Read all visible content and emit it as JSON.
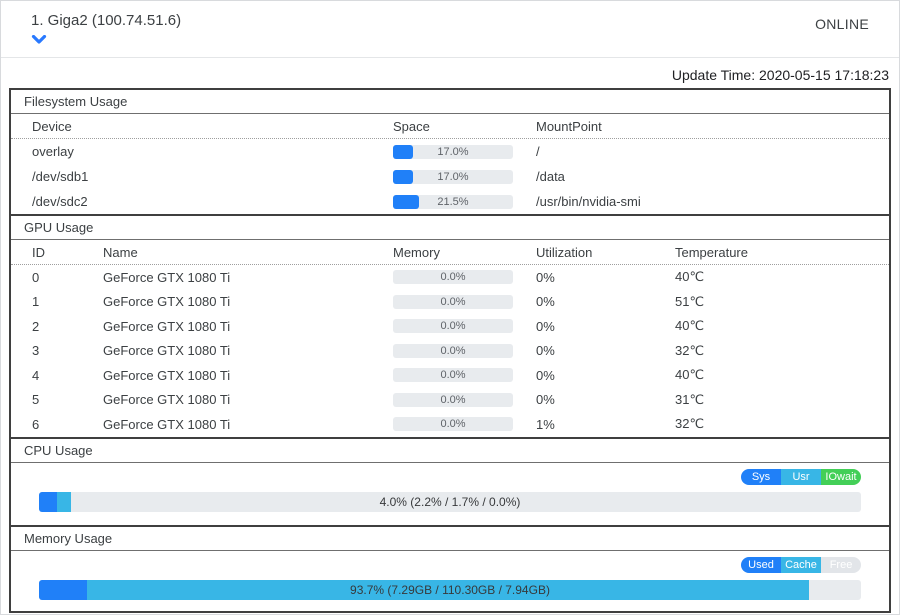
{
  "header": {
    "title": "1. Giga2 (100.74.51.6)",
    "status": "ONLINE"
  },
  "update_time": "Update Time: 2020-05-15 17:18:23",
  "colors": {
    "blue": "#2080f8",
    "cyan": "#38b6e6",
    "green": "#43cf57",
    "free_grey": "#e2e5e9",
    "bar_bg": "#e8ebee"
  },
  "filesystem": {
    "title": "Filesystem Usage",
    "columns": [
      "Device",
      "Space",
      "MountPoint"
    ],
    "rows": [
      {
        "device": "overlay",
        "space_pct": 17.0,
        "space_label": "17.0%",
        "mount": "/"
      },
      {
        "device": "/dev/sdb1",
        "space_pct": 17.0,
        "space_label": "17.0%",
        "mount": "/data"
      },
      {
        "device": "/dev/sdc2",
        "space_pct": 21.5,
        "space_label": "21.5%",
        "mount": "/usr/bin/nvidia-smi"
      }
    ]
  },
  "gpu": {
    "title": "GPU Usage",
    "columns": [
      "ID",
      "Name",
      "Memory",
      "Utilization",
      "Temperature"
    ],
    "rows": [
      {
        "id": "0",
        "name": "GeForce GTX 1080 Ti",
        "memory_pct": 0,
        "memory_label": "0.0%",
        "utilization": "0%",
        "temperature": "40℃"
      },
      {
        "id": "1",
        "name": "GeForce GTX 1080 Ti",
        "memory_pct": 0,
        "memory_label": "0.0%",
        "utilization": "0%",
        "temperature": "51℃"
      },
      {
        "id": "2",
        "name": "GeForce GTX 1080 Ti",
        "memory_pct": 0,
        "memory_label": "0.0%",
        "utilization": "0%",
        "temperature": "40℃"
      },
      {
        "id": "3",
        "name": "GeForce GTX 1080 Ti",
        "memory_pct": 0,
        "memory_label": "0.0%",
        "utilization": "0%",
        "temperature": "32℃"
      },
      {
        "id": "4",
        "name": "GeForce GTX 1080 Ti",
        "memory_pct": 0,
        "memory_label": "0.0%",
        "utilization": "0%",
        "temperature": "40℃"
      },
      {
        "id": "5",
        "name": "GeForce GTX 1080 Ti",
        "memory_pct": 0,
        "memory_label": "0.0%",
        "utilization": "0%",
        "temperature": "31℃"
      },
      {
        "id": "6",
        "name": "GeForce GTX 1080 Ti",
        "memory_pct": 0,
        "memory_label": "0.0%",
        "utilization": "1%",
        "temperature": "32℃"
      }
    ]
  },
  "cpu": {
    "title": "CPU Usage",
    "legend": [
      {
        "label": "Sys",
        "color": "#2080f8"
      },
      {
        "label": "Usr",
        "color": "#38b6e6"
      },
      {
        "label": "IOwait",
        "color": "#43cf57"
      }
    ],
    "bar": {
      "label": "4.0% (2.2% / 1.7% / 0.0%)",
      "segments": [
        {
          "name": "sys",
          "pct": 2.2,
          "color": "#2080f8"
        },
        {
          "name": "usr",
          "pct": 1.7,
          "color": "#38b6e6"
        },
        {
          "name": "iowait",
          "pct": 0,
          "color": "#43cf57"
        }
      ]
    }
  },
  "memory": {
    "title": "Memory Usage",
    "legend": [
      {
        "label": "Used",
        "color": "#2080f8"
      },
      {
        "label": "Cache",
        "color": "#38b6e6"
      },
      {
        "label": "Free",
        "color": "#e2e5e9"
      }
    ],
    "bar": {
      "label": "93.7% (7.29GB / 110.30GB / 7.94GB)",
      "segments": [
        {
          "name": "used",
          "pct": 5.8,
          "color": "#2080f8"
        },
        {
          "name": "cache",
          "pct": 87.9,
          "color": "#38b6e6"
        }
      ]
    }
  }
}
